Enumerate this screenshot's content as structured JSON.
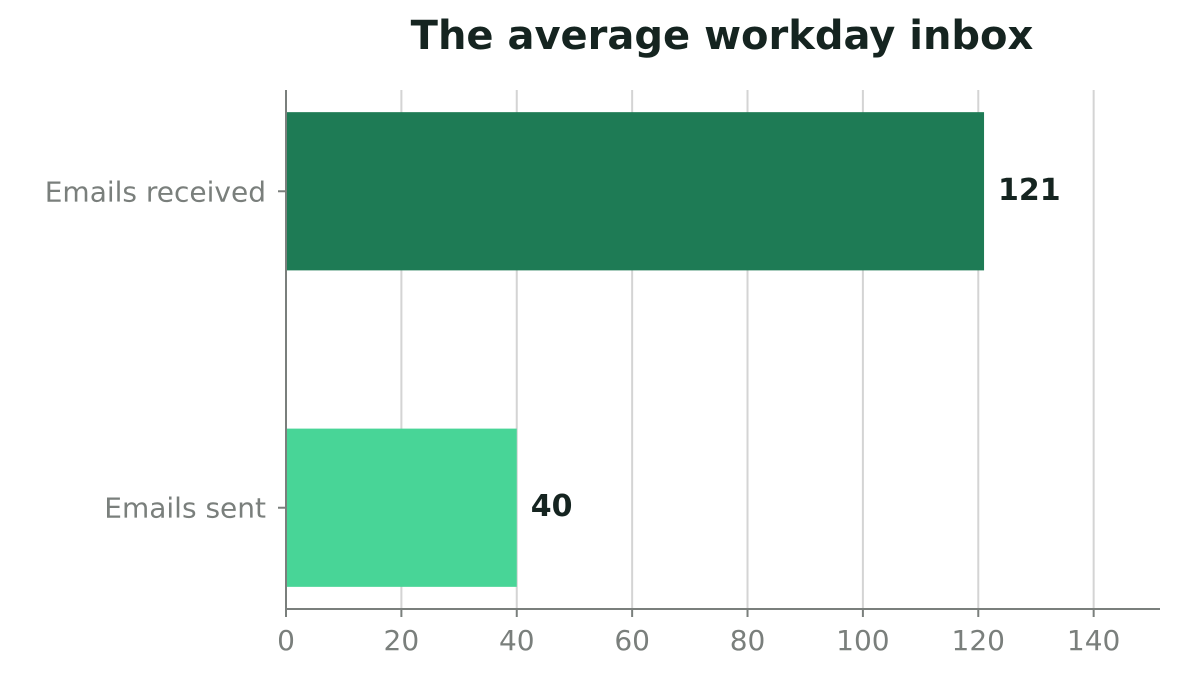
{
  "chart_data": {
    "type": "barh",
    "title": "The average workday inbox",
    "categories": [
      "Emails received",
      "Emails sent"
    ],
    "values": [
      121,
      40
    ],
    "colors": [
      "#1e7b55",
      "#48d597"
    ],
    "xlim": [
      0,
      151.5
    ],
    "xticks": [
      0,
      20,
      40,
      60,
      80,
      100,
      120,
      140
    ],
    "grid": true
  }
}
